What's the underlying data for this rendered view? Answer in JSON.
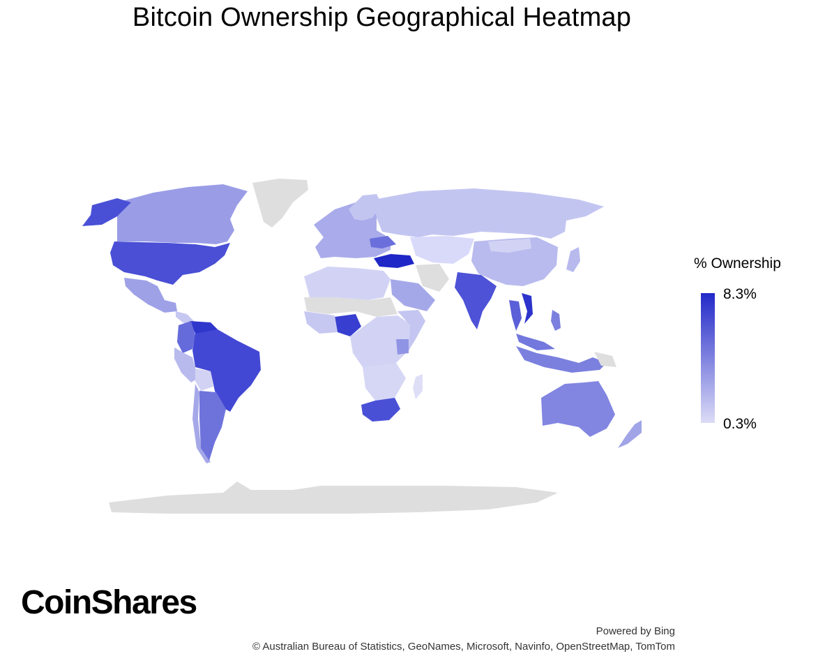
{
  "title": "Bitcoin Ownership Geographical Heatmap",
  "legend": {
    "title": "% Ownership",
    "max_label": "8.3%",
    "min_label": "0.3%",
    "max_color": "#2229c8",
    "min_color": "#dcdcf6"
  },
  "no_data_color": "#dedede",
  "brand": "CoinShares",
  "powered_by": "Powered by Bing",
  "credits": "© Australian Bureau of Statistics, GeoNames, Microsoft, Navinfo, OpenStreetMap, TomTom",
  "chart_data": {
    "type": "heatmap",
    "title": "Bitcoin Ownership Geographical Heatmap",
    "legend_title": "% Ownership",
    "scale_range": [
      0.3,
      8.3
    ],
    "countries": [
      {
        "name": "Turkey",
        "level": 1.0
      },
      {
        "name": "Nigeria",
        "level": 0.85
      },
      {
        "name": "Vietnam",
        "level": 0.85
      },
      {
        "name": "Venezuela",
        "level": 0.9
      },
      {
        "name": "United States",
        "level": 0.75
      },
      {
        "name": "Brazil",
        "level": 0.75
      },
      {
        "name": "India",
        "level": 0.7
      },
      {
        "name": "South Africa",
        "level": 0.7
      },
      {
        "name": "Alaska (United States)",
        "level": 0.75
      },
      {
        "name": "Thailand",
        "level": 0.65
      },
      {
        "name": "Argentina",
        "level": 0.6
      },
      {
        "name": "Ukraine",
        "level": 0.6
      },
      {
        "name": "Australia",
        "level": 0.5
      },
      {
        "name": "Colombia",
        "level": 0.55
      },
      {
        "name": "Indonesia",
        "level": 0.5
      },
      {
        "name": "Philippines",
        "level": 0.5
      },
      {
        "name": "Malaysia",
        "level": 0.5
      },
      {
        "name": "Mexico",
        "level": 0.45
      },
      {
        "name": "Canada",
        "level": 0.35
      },
      {
        "name": "Kenya",
        "level": 0.4
      },
      {
        "name": "Saudi Arabia",
        "level": 0.35
      },
      {
        "name": "New Zealand",
        "level": 0.35
      },
      {
        "name": "Peru",
        "level": 0.35
      },
      {
        "name": "Chile",
        "level": 0.35
      },
      {
        "name": "China",
        "level": 0.25
      },
      {
        "name": "Russia",
        "level": 0.22
      },
      {
        "name": "Kazakhstan",
        "level": 0.15
      },
      {
        "name": "Japan",
        "level": 0.25
      },
      {
        "name": "Iran",
        "level": 0.0
      },
      {
        "name": "Greenland",
        "level": null
      },
      {
        "name": "Antarctica",
        "level": null
      }
    ]
  }
}
